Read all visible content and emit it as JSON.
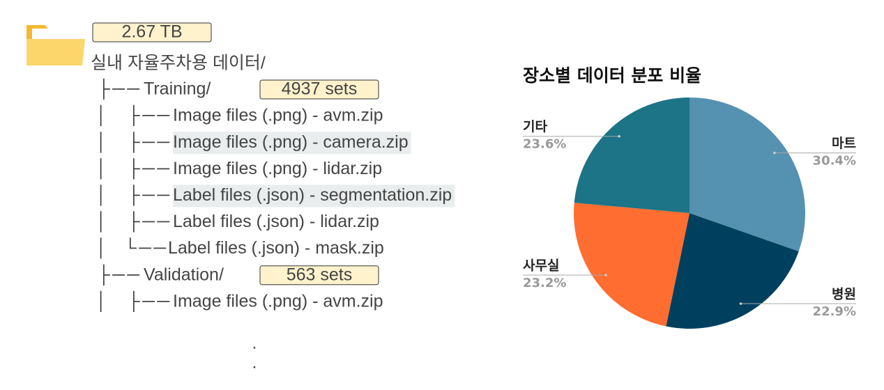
{
  "storage_badge": "2.67 TB",
  "root_folder": "실내 자율주차용 데이터/",
  "tree": {
    "rows": [
      {
        "level": 1,
        "branch": "├──",
        "name": "Training/",
        "badge": "4937 sets"
      },
      {
        "level": 2,
        "pipe": "│",
        "branch": "├──",
        "name": "Image files (.png)  - avm.zip"
      },
      {
        "level": 2,
        "pipe": "│",
        "branch": "├──",
        "name": "Image files (.png)  - camera.zip",
        "highlight": true
      },
      {
        "level": 2,
        "pipe": "│",
        "branch": "├──",
        "name": "Image files (.png)  - lidar.zip"
      },
      {
        "level": 2,
        "pipe": "│",
        "branch": "├──",
        "name": "Label files (.json)  - segmentation.zip",
        "highlight": true
      },
      {
        "level": 2,
        "pipe": "│",
        "branch": "├──",
        "name": "Label files (.json)  - lidar.zip"
      },
      {
        "level": 2,
        "pipe": "│",
        "branch": "└──",
        "name": "Label files (.json)  - mask.zip"
      },
      {
        "level": 1,
        "branch": "├──",
        "name": "Validation/",
        "badge": "563 sets"
      },
      {
        "level": 2,
        "pipe": "│",
        "branch": "├──",
        "name": "Image files (.png)  - avm.zip"
      }
    ],
    "ellipsis": [
      ".",
      "."
    ]
  },
  "chart_data": {
    "type": "pie",
    "title": "장소별 데이터 분포 비율",
    "categories": [
      "마트",
      "병원",
      "사무실",
      "기타"
    ],
    "values": [
      30.4,
      22.9,
      23.2,
      23.6
    ],
    "value_labels": [
      "30.4%",
      "22.9%",
      "23.2%",
      "23.6%"
    ],
    "colors": [
      "#5591b0",
      "#00405f",
      "#ff6d31",
      "#1c7486"
    ]
  }
}
